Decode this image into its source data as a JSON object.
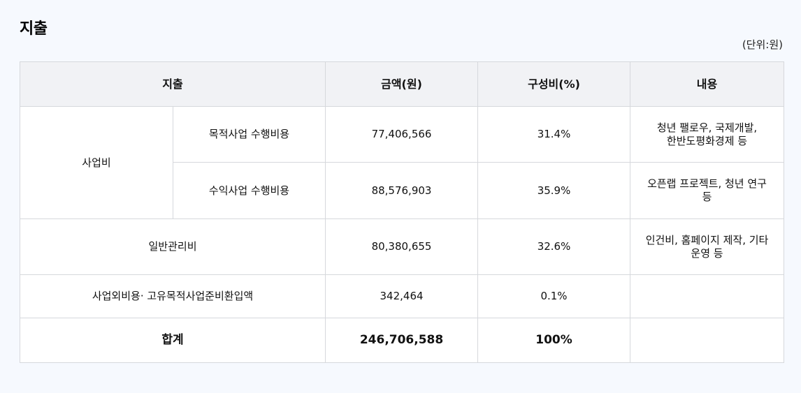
{
  "title": "지출",
  "unit_note": "(단위:원)",
  "table": {
    "headers": {
      "category": "지출",
      "amount": "금액(원)",
      "ratio": "구성비(%)",
      "description": "내용"
    },
    "business_group_label": "사업비",
    "rows": [
      {
        "label": "목적사업 수행비용",
        "amount": "77,406,566",
        "ratio": "31.4%",
        "description": "청년 팰로우, 국제개발,\n한반도평화경제 등"
      },
      {
        "label": "수익사업 수행비용",
        "amount": "88,576,903",
        "ratio": "35.9%",
        "description": "오픈랩 프로젝트, 청년 연구\n등"
      },
      {
        "label": "일반관리비",
        "amount": "80,380,655",
        "ratio": "32.6%",
        "description": "인건비, 홈페이지 제작, 기타\n운영 등"
      },
      {
        "label": "사업외비용· 고유목적사업준비환입액",
        "amount": "342,464",
        "ratio": "0.1%",
        "description": ""
      }
    ],
    "total": {
      "label": "합계",
      "amount": "246,706,588",
      "ratio": "100%",
      "description": ""
    }
  }
}
